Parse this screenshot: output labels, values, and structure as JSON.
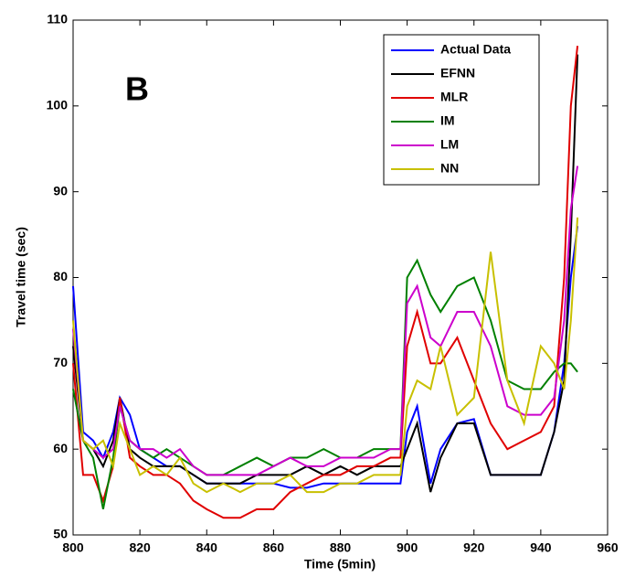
{
  "chart_data": {
    "type": "line",
    "annotation": "B",
    "xlabel": "Time (5min)",
    "ylabel": "Travel time (sec)",
    "x": [
      800,
      803,
      806,
      809,
      812,
      814,
      817,
      820,
      824,
      828,
      832,
      836,
      840,
      845,
      850,
      855,
      860,
      865,
      870,
      875,
      880,
      885,
      890,
      895,
      898,
      900,
      903,
      907,
      910,
      915,
      920,
      925,
      930,
      935,
      940,
      944,
      947,
      949,
      951
    ],
    "series": [
      {
        "name": "Actual Data",
        "color": "#0000ff",
        "values": [
          79,
          62,
          61,
          59,
          62,
          66,
          64,
          60,
          59,
          58,
          58,
          57,
          56,
          56,
          56,
          56,
          56,
          55.5,
          55.5,
          56,
          56,
          56,
          56,
          56,
          56,
          62,
          65,
          56,
          60,
          63,
          63.5,
          57,
          57,
          57,
          57,
          62,
          70,
          80,
          86
        ]
      },
      {
        "name": "EFNN",
        "color": "#000000",
        "values": [
          72,
          61,
          60,
          58,
          61,
          66,
          60,
          59,
          58,
          58,
          58,
          57,
          56,
          56,
          56,
          57,
          57,
          57,
          58,
          57,
          58,
          57,
          58,
          58,
          58,
          60,
          63,
          55,
          59,
          63,
          63,
          57,
          57,
          57,
          57,
          62,
          68,
          85,
          106
        ]
      },
      {
        "name": "MLR",
        "color": "#e00000",
        "values": [
          70,
          57,
          57,
          54,
          58,
          66,
          59,
          58,
          57,
          57,
          56,
          54,
          53,
          52,
          52,
          53,
          53,
          55,
          56,
          57,
          57,
          58,
          58,
          59,
          59,
          72,
          76,
          70,
          70,
          73,
          68,
          63,
          60,
          61,
          62,
          65,
          80,
          100,
          107
        ]
      },
      {
        "name": "IM",
        "color": "#008000",
        "values": [
          67,
          61,
          59,
          53,
          59,
          65,
          61,
          60,
          59,
          60,
          59,
          58,
          57,
          57,
          58,
          59,
          58,
          59,
          59,
          60,
          59,
          59,
          60,
          60,
          60,
          80,
          82,
          78,
          76,
          79,
          80,
          75,
          68,
          67,
          67,
          69,
          70,
          70,
          69
        ]
      },
      {
        "name": "LM",
        "color": "#cc00cc",
        "values": [
          74,
          61,
          60,
          59,
          60,
          65,
          61,
          60,
          60,
          59,
          60,
          58,
          57,
          57,
          57,
          57,
          58,
          59,
          58,
          58,
          59,
          59,
          59,
          60,
          60,
          77,
          79,
          73,
          72,
          76,
          76,
          72,
          65,
          64,
          64,
          66,
          75,
          88,
          93
        ]
      },
      {
        "name": "NN",
        "color": "#c8c000",
        "values": [
          75,
          61,
          60,
          61,
          58,
          63,
          60,
          57,
          58,
          57,
          59,
          56,
          55,
          56,
          55,
          56,
          56,
          57,
          55,
          55,
          56,
          56,
          57,
          57,
          57,
          65,
          68,
          67,
          72,
          64,
          66,
          83,
          68,
          63,
          72,
          70,
          67,
          75,
          87
        ]
      }
    ],
    "xlim": [
      800,
      960
    ],
    "xticks": [
      800,
      820,
      840,
      860,
      880,
      900,
      920,
      940,
      960
    ],
    "ylim": [
      50,
      110
    ],
    "yticks": [
      50,
      60,
      70,
      80,
      90,
      100,
      110
    ],
    "legend": "upper right"
  }
}
